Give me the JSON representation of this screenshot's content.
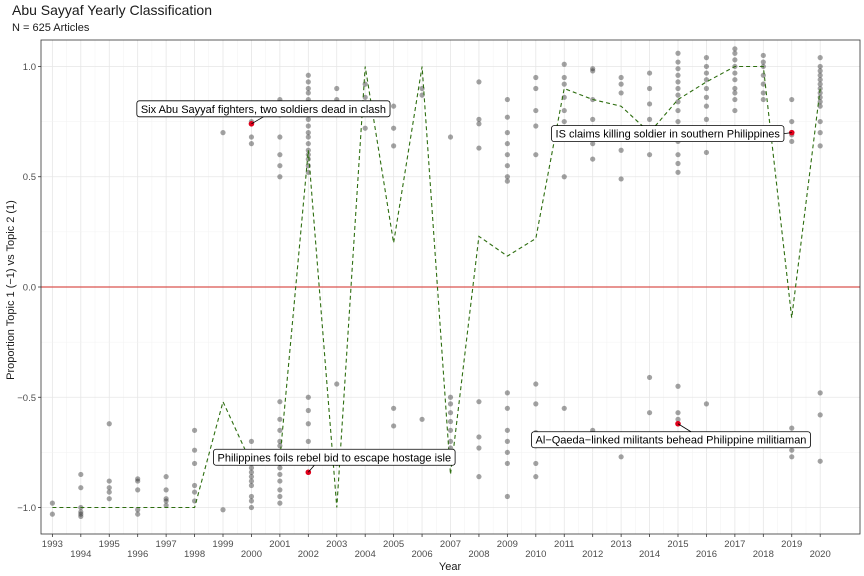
{
  "chart_data": {
    "type": "scatter",
    "title": "Abu Sayyaf Yearly Classification",
    "subtitle": "N = 625 Articles",
    "xlabel": "Year",
    "ylabel": "Proportion Topic 1 (−1) vs Topic 2 (1)",
    "xlim": [
      1992.6,
      2021.4
    ],
    "ylim": [
      -1.12,
      1.12
    ],
    "x_ticks": [
      1993,
      1994,
      1995,
      1996,
      1997,
      1998,
      1999,
      2000,
      2001,
      2002,
      2003,
      2004,
      2005,
      2006,
      2007,
      2008,
      2009,
      2010,
      2011,
      2012,
      2013,
      2014,
      2015,
      2016,
      2017,
      2018,
      2019,
      2020
    ],
    "y_ticks": [
      -1.0,
      -0.5,
      0.0,
      0.5,
      1.0
    ],
    "y_tick_labels": [
      "−1.0",
      "−0.5",
      "0.0",
      "0.5",
      "1.0"
    ],
    "grid": true,
    "reference_line": {
      "y": 0,
      "color": "#d9534f"
    },
    "trend_line": {
      "style": "dashed",
      "color": "#2e6e10",
      "x": [
        1993,
        1994,
        1995,
        1996,
        1997,
        1998,
        1999,
        2000,
        2001,
        2002,
        2003,
        2004,
        2005,
        2006,
        2007,
        2008,
        2009,
        2010,
        2011,
        2012,
        2013,
        2014,
        2015,
        2016,
        2017,
        2018,
        2019,
        2020
      ],
      "y": [
        -1.0,
        -1.0,
        -1.0,
        -1.0,
        -1.0,
        -1.0,
        -0.52,
        -0.8,
        -0.78,
        0.62,
        -1.0,
        1.0,
        0.2,
        1.0,
        -0.85,
        0.23,
        0.14,
        0.22,
        0.9,
        0.85,
        0.82,
        0.7,
        0.85,
        0.93,
        1.0,
        1.0,
        -0.14,
        0.9
      ]
    },
    "points": [
      [
        1993,
        -0.98
      ],
      [
        1993,
        -1.03
      ],
      [
        1994,
        -0.85
      ],
      [
        1994,
        -0.91
      ],
      [
        1994,
        -1.0
      ],
      [
        1994,
        -1.02
      ],
      [
        1994,
        -1.04
      ],
      [
        1994,
        -1.03
      ],
      [
        1995,
        -0.62
      ],
      [
        1995,
        -0.88
      ],
      [
        1995,
        -0.91
      ],
      [
        1995,
        -0.93
      ],
      [
        1995,
        -0.96
      ],
      [
        1996,
        -0.87
      ],
      [
        1996,
        -0.88
      ],
      [
        1996,
        -0.92
      ],
      [
        1996,
        -1.01
      ],
      [
        1996,
        -1.03
      ],
      [
        1997,
        -0.86
      ],
      [
        1997,
        -0.92
      ],
      [
        1997,
        -0.96
      ],
      [
        1997,
        -0.97
      ],
      [
        1997,
        -0.99
      ],
      [
        1998,
        -0.65
      ],
      [
        1998,
        -0.74
      ],
      [
        1998,
        -0.8
      ],
      [
        1998,
        -0.9
      ],
      [
        1998,
        -0.93
      ],
      [
        1998,
        -0.97
      ],
      [
        1999,
        -1.01
      ],
      [
        1999,
        0.7
      ],
      [
        2000,
        0.75
      ],
      [
        2000,
        0.68
      ],
      [
        2000,
        0.65
      ],
      [
        2000,
        -0.7
      ],
      [
        2000,
        -0.77
      ],
      [
        2000,
        -0.82
      ],
      [
        2000,
        -0.84
      ],
      [
        2000,
        -0.86
      ],
      [
        2000,
        -0.88
      ],
      [
        2000,
        -0.9
      ],
      [
        2000,
        -0.95
      ],
      [
        2000,
        -0.97
      ],
      [
        2000,
        -1.0
      ],
      [
        2001,
        0.85
      ],
      [
        2001,
        0.78
      ],
      [
        2001,
        0.68
      ],
      [
        2001,
        0.6
      ],
      [
        2001,
        0.55
      ],
      [
        2001,
        0.5
      ],
      [
        2001,
        -0.52
      ],
      [
        2001,
        -0.6
      ],
      [
        2001,
        -0.65
      ],
      [
        2001,
        -0.7
      ],
      [
        2001,
        -0.72
      ],
      [
        2001,
        -0.75
      ],
      [
        2001,
        -0.78
      ],
      [
        2001,
        -0.8
      ],
      [
        2001,
        -0.82
      ],
      [
        2001,
        -0.85
      ],
      [
        2001,
        -0.88
      ],
      [
        2001,
        -0.92
      ],
      [
        2001,
        -0.95
      ],
      [
        2001,
        -0.98
      ],
      [
        2002,
        0.96
      ],
      [
        2002,
        0.93
      ],
      [
        2002,
        0.9
      ],
      [
        2002,
        0.88
      ],
      [
        2002,
        0.85
      ],
      [
        2002,
        0.82
      ],
      [
        2002,
        0.79
      ],
      [
        2002,
        0.76
      ],
      [
        2002,
        0.73
      ],
      [
        2002,
        0.7
      ],
      [
        2002,
        0.68
      ],
      [
        2002,
        0.65
      ],
      [
        2002,
        0.62
      ],
      [
        2002,
        0.6
      ],
      [
        2002,
        0.58
      ],
      [
        2002,
        0.55
      ],
      [
        2002,
        0.52
      ],
      [
        2002,
        -0.5
      ],
      [
        2002,
        -0.56
      ],
      [
        2002,
        -0.62
      ],
      [
        2002,
        -0.7
      ],
      [
        2002,
        -0.78
      ],
      [
        2003,
        0.9
      ],
      [
        2003,
        0.85
      ],
      [
        2003,
        -0.44
      ],
      [
        2003,
        -0.8
      ],
      [
        2004,
        0.92
      ],
      [
        2004,
        0.86
      ],
      [
        2004,
        0.72
      ],
      [
        2005,
        0.82
      ],
      [
        2005,
        0.72
      ],
      [
        2005,
        0.64
      ],
      [
        2005,
        -0.63
      ],
      [
        2005,
        -0.55
      ],
      [
        2006,
        0.9
      ],
      [
        2006,
        0.87
      ],
      [
        2006,
        -0.6
      ],
      [
        2007,
        0.68
      ],
      [
        2007,
        -0.5
      ],
      [
        2007,
        -0.53
      ],
      [
        2007,
        -0.57
      ],
      [
        2007,
        -0.61
      ],
      [
        2007,
        -0.65
      ],
      [
        2007,
        -0.7
      ],
      [
        2007,
        -0.73
      ],
      [
        2007,
        -0.78
      ],
      [
        2008,
        0.93
      ],
      [
        2008,
        0.76
      ],
      [
        2008,
        0.74
      ],
      [
        2008,
        0.63
      ],
      [
        2008,
        -0.52
      ],
      [
        2008,
        -0.68
      ],
      [
        2008,
        -0.73
      ],
      [
        2008,
        -0.86
      ],
      [
        2009,
        0.85
      ],
      [
        2009,
        0.77
      ],
      [
        2009,
        0.7
      ],
      [
        2009,
        0.65
      ],
      [
        2009,
        0.6
      ],
      [
        2009,
        0.55
      ],
      [
        2009,
        0.5
      ],
      [
        2009,
        0.48
      ],
      [
        2009,
        -0.48
      ],
      [
        2009,
        -0.55
      ],
      [
        2009,
        -0.65
      ],
      [
        2009,
        -0.7
      ],
      [
        2009,
        -0.75
      ],
      [
        2009,
        -0.8
      ],
      [
        2009,
        -0.95
      ],
      [
        2010,
        0.95
      ],
      [
        2010,
        0.9
      ],
      [
        2010,
        0.8
      ],
      [
        2010,
        0.73
      ],
      [
        2010,
        0.6
      ],
      [
        2010,
        -0.44
      ],
      [
        2010,
        -0.53
      ],
      [
        2010,
        -0.66
      ],
      [
        2010,
        -0.72
      ],
      [
        2010,
        -0.8
      ],
      [
        2010,
        -0.86
      ],
      [
        2011,
        1.01
      ],
      [
        2011,
        0.95
      ],
      [
        2011,
        0.92
      ],
      [
        2011,
        0.86
      ],
      [
        2011,
        0.8
      ],
      [
        2011,
        0.75
      ],
      [
        2011,
        0.5
      ],
      [
        2011,
        -0.55
      ],
      [
        2011,
        -0.68
      ],
      [
        2012,
        0.99
      ],
      [
        2012,
        0.98
      ],
      [
        2012,
        0.85
      ],
      [
        2012,
        0.76
      ],
      [
        2012,
        0.65
      ],
      [
        2012,
        0.58
      ],
      [
        2012,
        -0.65
      ],
      [
        2013,
        0.95
      ],
      [
        2013,
        0.92
      ],
      [
        2013,
        0.88
      ],
      [
        2013,
        0.72
      ],
      [
        2013,
        0.62
      ],
      [
        2013,
        0.49
      ],
      [
        2013,
        -0.77
      ],
      [
        2014,
        0.97
      ],
      [
        2014,
        0.9
      ],
      [
        2014,
        0.83
      ],
      [
        2014,
        0.76
      ],
      [
        2014,
        0.7
      ],
      [
        2014,
        0.6
      ],
      [
        2014,
        -0.41
      ],
      [
        2014,
        -0.57
      ],
      [
        2015,
        1.06
      ],
      [
        2015,
        1.02
      ],
      [
        2015,
        0.99
      ],
      [
        2015,
        0.96
      ],
      [
        2015,
        0.93
      ],
      [
        2015,
        0.9
      ],
      [
        2015,
        0.87
      ],
      [
        2015,
        0.84
      ],
      [
        2015,
        0.8
      ],
      [
        2015,
        0.75
      ],
      [
        2015,
        0.7
      ],
      [
        2015,
        0.66
      ],
      [
        2015,
        0.6
      ],
      [
        2015,
        0.56
      ],
      [
        2015,
        0.52
      ],
      [
        2015,
        -0.45
      ],
      [
        2015,
        -0.57
      ],
      [
        2015,
        -0.6
      ],
      [
        2016,
        1.04
      ],
      [
        2016,
        1.0
      ],
      [
        2016,
        0.97
      ],
      [
        2016,
        0.94
      ],
      [
        2016,
        0.9
      ],
      [
        2016,
        0.86
      ],
      [
        2016,
        0.82
      ],
      [
        2016,
        0.76
      ],
      [
        2016,
        0.7
      ],
      [
        2016,
        0.61
      ],
      [
        2016,
        -0.53
      ],
      [
        2017,
        1.08
      ],
      [
        2017,
        1.06
      ],
      [
        2017,
        1.03
      ],
      [
        2017,
        1.0
      ],
      [
        2017,
        0.97
      ],
      [
        2017,
        0.94
      ],
      [
        2017,
        0.9
      ],
      [
        2017,
        0.88
      ],
      [
        2017,
        0.85
      ],
      [
        2017,
        0.8
      ],
      [
        2018,
        1.05
      ],
      [
        2018,
        1.02
      ],
      [
        2018,
        1.0
      ],
      [
        2018,
        0.96
      ],
      [
        2018,
        0.92
      ],
      [
        2018,
        0.88
      ],
      [
        2018,
        0.85
      ],
      [
        2019,
        0.85
      ],
      [
        2019,
        0.75
      ],
      [
        2019,
        0.69
      ],
      [
        2019,
        0.66
      ],
      [
        2019,
        -0.64
      ],
      [
        2019,
        -0.7
      ],
      [
        2019,
        -0.74
      ],
      [
        2019,
        -0.77
      ],
      [
        2020,
        1.04
      ],
      [
        2020,
        1.0
      ],
      [
        2020,
        0.98
      ],
      [
        2020,
        0.96
      ],
      [
        2020,
        0.94
      ],
      [
        2020,
        0.92
      ],
      [
        2020,
        0.9
      ],
      [
        2020,
        0.88
      ],
      [
        2020,
        0.86
      ],
      [
        2020,
        0.84
      ],
      [
        2020,
        0.82
      ],
      [
        2020,
        0.75
      ],
      [
        2020,
        0.7
      ],
      [
        2020,
        0.64
      ],
      [
        2020,
        -0.48
      ],
      [
        2020,
        -0.58
      ],
      [
        2020,
        -0.79
      ]
    ],
    "highlighted_points": [
      {
        "x": 2000,
        "y": 0.74,
        "label": "Six Abu Sayyaf fighters, two soldiers dead in clash",
        "label_anchor": "above-left"
      },
      {
        "x": 2002,
        "y": -0.84,
        "label": "Philippines foils rebel bid to escape hostage isle",
        "label_anchor": "above"
      },
      {
        "x": 2019,
        "y": 0.7,
        "label": "IS claims killing soldier in southern Philippines",
        "label_anchor": "left"
      },
      {
        "x": 2015,
        "y": -0.62,
        "label": "Al−Qaeda−linked militants behead Philippine militiaman",
        "label_anchor": "below-left"
      }
    ],
    "colors": {
      "points": "#333333",
      "highlight": "#e0001b",
      "trend": "#2e6e10",
      "zero_line": "#d9534f"
    }
  }
}
